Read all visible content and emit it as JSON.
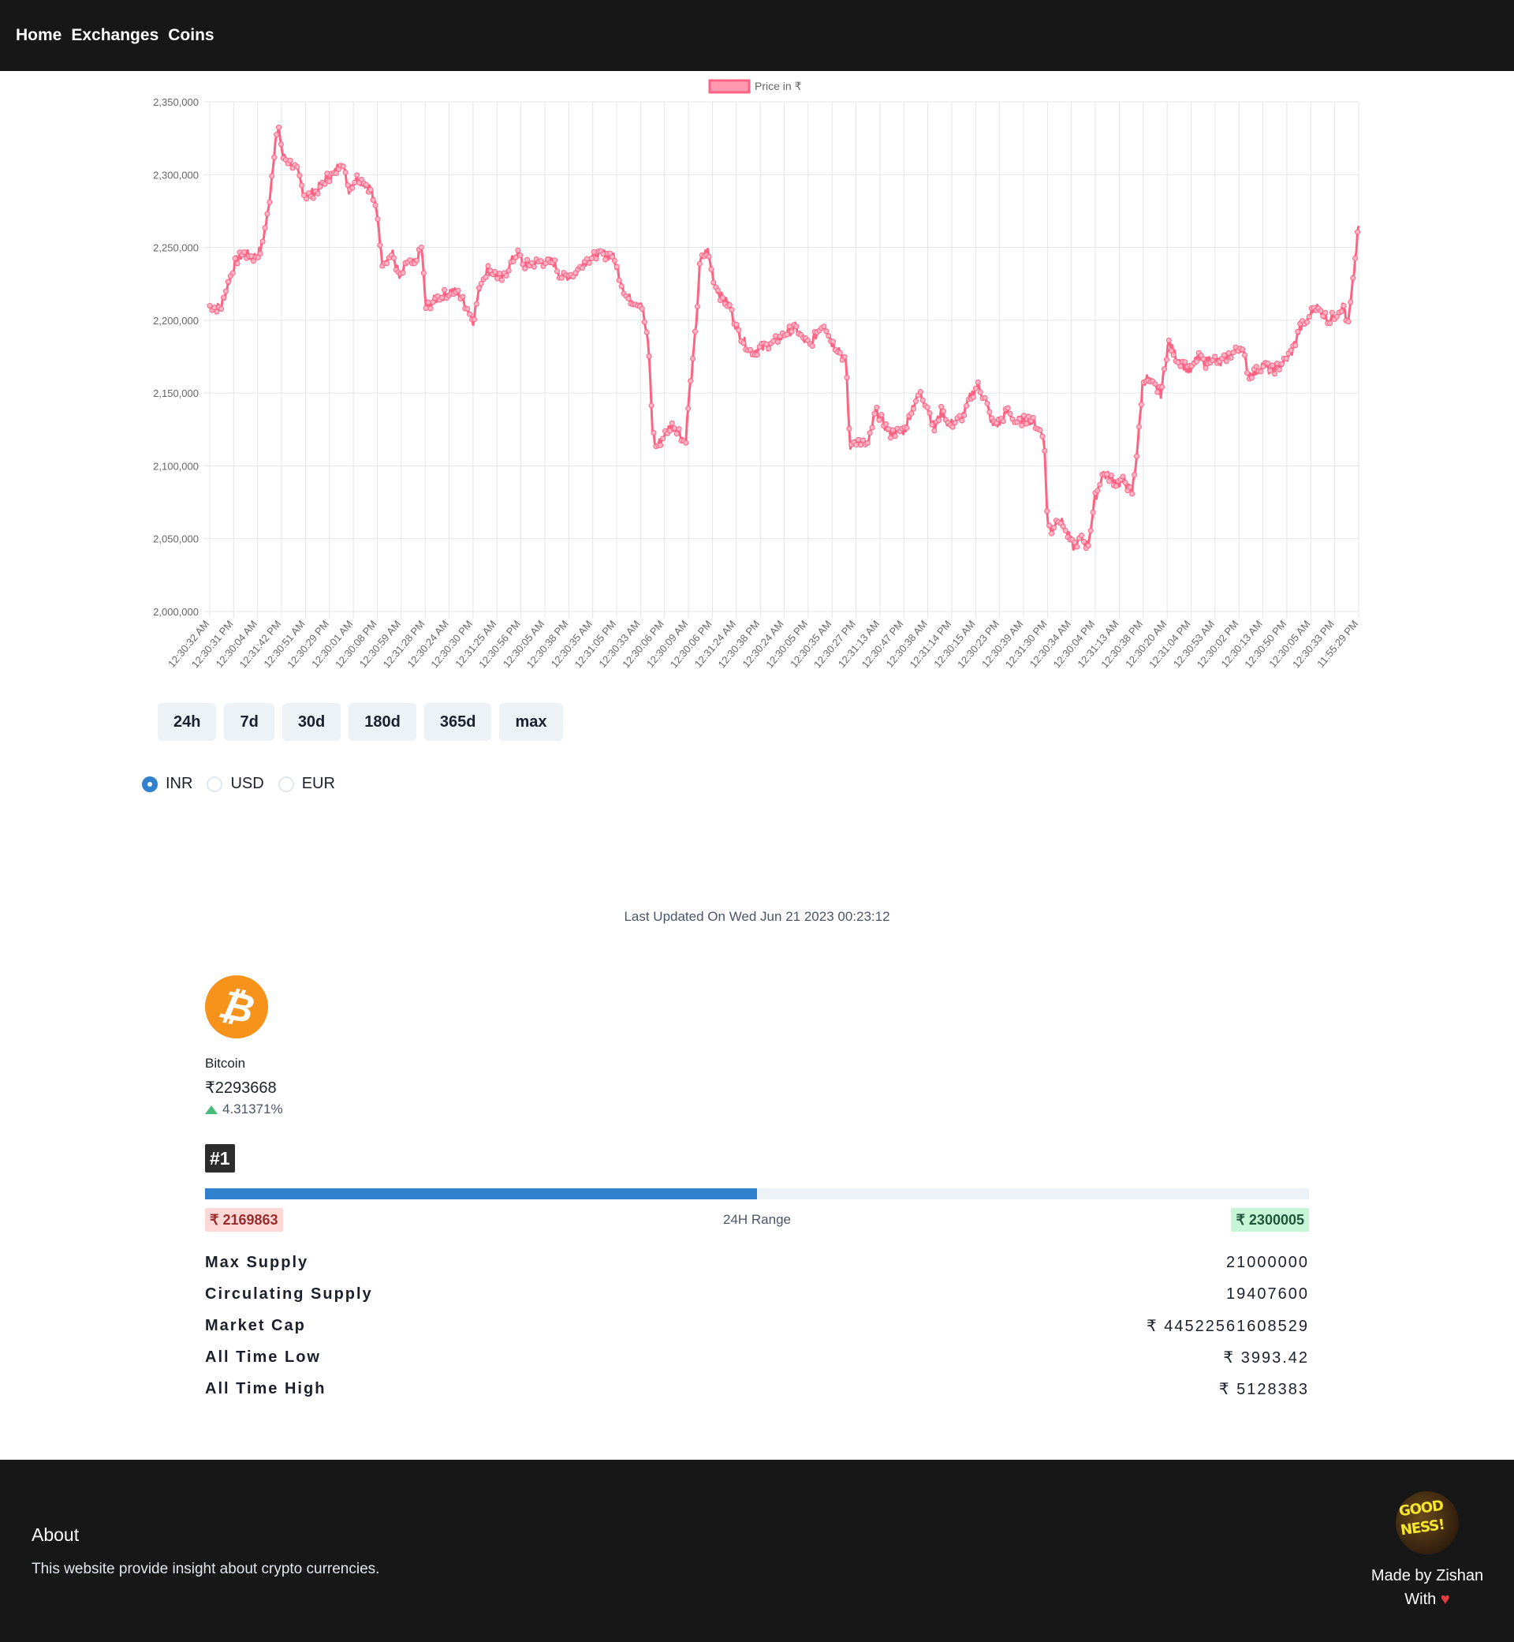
{
  "nav": {
    "items": [
      "Home",
      "Exchanges",
      "Coins"
    ]
  },
  "chart_data": {
    "type": "line",
    "legend": "Price in ₹",
    "legend_position": "top",
    "series_color": "#ff6384",
    "ylim": [
      2000000,
      2350000
    ],
    "yticks": [
      "2,000,000",
      "2,050,000",
      "2,100,000",
      "2,150,000",
      "2,200,000",
      "2,250,000",
      "2,300,000",
      "2,350,000"
    ],
    "xticks": [
      "12:30:32 AM",
      "12:30:31 PM",
      "12:30:04 AM",
      "12:31:42 PM",
      "12:30:51 AM",
      "12:30:29 PM",
      "12:30:01 AM",
      "12:30:08 PM",
      "12:30:59 AM",
      "12:31:28 PM",
      "12:30:24 AM",
      "12:30:30 PM",
      "12:31:25 AM",
      "12:30:56 PM",
      "12:30:05 AM",
      "12:30:38 PM",
      "12:30:35 AM",
      "12:31:05 PM",
      "12:30:33 AM",
      "12:30:06 PM",
      "12:30:09 AM",
      "12:30:06 PM",
      "12:31:24 AM",
      "12:30:38 PM",
      "12:30:24 AM",
      "12:30:05 PM",
      "12:30:35 AM",
      "12:30:27 PM",
      "12:31:13 AM",
      "12:30:47 PM",
      "12:30:38 AM",
      "12:31:14 PM",
      "12:30:15 AM",
      "12:30:23 PM",
      "12:30:39 AM",
      "12:31:30 PM",
      "12:30:34 AM",
      "12:30:04 PM",
      "12:31:13 AM",
      "12:30:38 PM",
      "12:30:20 AM",
      "12:31:04 PM",
      "12:30:53 AM",
      "12:30:02 PM",
      "12:30:13 AM",
      "12:30:50 PM",
      "12:30:05 AM",
      "12:30:33 PM",
      "11:55:29 PM"
    ],
    "keypoints": [
      [
        0,
        2210000
      ],
      [
        1.5,
        2208000
      ],
      [
        2.5,
        2225000
      ],
      [
        3.5,
        2240000
      ],
      [
        4.5,
        2246000
      ],
      [
        6,
        2243000
      ],
      [
        7,
        2248000
      ],
      [
        8,
        2275000
      ],
      [
        8.5,
        2300000
      ],
      [
        9,
        2325000
      ],
      [
        9.5,
        2330000
      ],
      [
        10,
        2312000
      ],
      [
        11,
        2308000
      ],
      [
        12,
        2302000
      ],
      [
        13,
        2285000
      ],
      [
        14.5,
        2288000
      ],
      [
        16,
        2298000
      ],
      [
        17,
        2300000
      ],
      [
        18,
        2310000
      ],
      [
        19,
        2290000
      ],
      [
        20,
        2298000
      ],
      [
        21,
        2295000
      ],
      [
        22,
        2290000
      ],
      [
        23,
        2270000
      ],
      [
        23.5,
        2240000
      ],
      [
        25,
        2245000
      ],
      [
        26,
        2228000
      ],
      [
        27,
        2240000
      ],
      [
        28,
        2238000
      ],
      [
        29,
        2250000
      ],
      [
        29.5,
        2208000
      ],
      [
        31,
        2215000
      ],
      [
        33,
        2220000
      ],
      [
        34,
        2218000
      ],
      [
        35,
        2210000
      ],
      [
        36,
        2200000
      ],
      [
        37,
        2225000
      ],
      [
        38,
        2235000
      ],
      [
        40,
        2228000
      ],
      [
        41,
        2238000
      ],
      [
        42,
        2246000
      ],
      [
        43,
        2238000
      ],
      [
        45,
        2240000
      ],
      [
        47,
        2240000
      ],
      [
        48,
        2230000
      ],
      [
        50,
        2232000
      ],
      [
        51,
        2240000
      ],
      [
        53,
        2245000
      ],
      [
        55,
        2245000
      ],
      [
        56,
        2230000
      ],
      [
        57,
        2215000
      ],
      [
        59,
        2212000
      ],
      [
        60,
        2180000
      ],
      [
        60.5,
        2125000
      ],
      [
        61,
        2112000
      ],
      [
        62,
        2120000
      ],
      [
        63,
        2128000
      ],
      [
        64,
        2125000
      ],
      [
        65,
        2115000
      ],
      [
        65.5,
        2148000
      ],
      [
        66,
        2170000
      ],
      [
        66.5,
        2200000
      ],
      [
        67,
        2240000
      ],
      [
        68,
        2248000
      ],
      [
        69,
        2225000
      ],
      [
        70,
        2215000
      ],
      [
        71,
        2210000
      ],
      [
        72,
        2195000
      ],
      [
        73,
        2185000
      ],
      [
        74,
        2178000
      ],
      [
        76,
        2182000
      ],
      [
        77,
        2185000
      ],
      [
        78,
        2188000
      ],
      [
        79,
        2192000
      ],
      [
        80,
        2195000
      ],
      [
        81,
        2188000
      ],
      [
        82,
        2182000
      ],
      [
        83,
        2192000
      ],
      [
        84,
        2198000
      ],
      [
        85,
        2185000
      ],
      [
        86,
        2180000
      ],
      [
        87,
        2170000
      ],
      [
        87.3,
        2130000
      ],
      [
        87.6,
        2110000
      ],
      [
        88,
        2118000
      ],
      [
        90,
        2115000
      ],
      [
        91,
        2138000
      ],
      [
        92,
        2130000
      ],
      [
        93,
        2122000
      ],
      [
        95,
        2125000
      ],
      [
        96,
        2140000
      ],
      [
        97,
        2150000
      ],
      [
        98,
        2142000
      ],
      [
        99,
        2125000
      ],
      [
        100,
        2138000
      ],
      [
        101,
        2128000
      ],
      [
        102,
        2130000
      ],
      [
        103,
        2135000
      ],
      [
        104,
        2148000
      ],
      [
        105,
        2155000
      ],
      [
        106,
        2145000
      ],
      [
        107,
        2128000
      ],
      [
        108,
        2130000
      ],
      [
        109,
        2138000
      ],
      [
        110,
        2130000
      ],
      [
        112,
        2132000
      ],
      [
        113,
        2128000
      ],
      [
        114,
        2120000
      ],
      [
        114.5,
        2060000
      ],
      [
        115,
        2055000
      ],
      [
        116,
        2065000
      ],
      [
        117,
        2055000
      ],
      [
        118,
        2045000
      ],
      [
        119,
        2050000
      ],
      [
        120,
        2045000
      ],
      [
        121,
        2078000
      ],
      [
        122,
        2095000
      ],
      [
        123,
        2092000
      ],
      [
        124,
        2088000
      ],
      [
        125,
        2090000
      ],
      [
        126,
        2080000
      ],
      [
        126.5,
        2100000
      ],
      [
        127,
        2125000
      ],
      [
        127.5,
        2158000
      ],
      [
        128,
        2160000
      ],
      [
        129,
        2155000
      ],
      [
        130,
        2150000
      ],
      [
        131,
        2185000
      ],
      [
        132,
        2175000
      ],
      [
        133,
        2170000
      ],
      [
        134,
        2165000
      ],
      [
        135,
        2175000
      ],
      [
        136,
        2170000
      ],
      [
        137,
        2175000
      ],
      [
        138,
        2170000
      ],
      [
        139,
        2175000
      ],
      [
        140,
        2178000
      ],
      [
        141,
        2182000
      ],
      [
        142,
        2162000
      ],
      [
        143,
        2165000
      ],
      [
        144,
        2170000
      ],
      [
        145,
        2165000
      ],
      [
        146,
        2168000
      ],
      [
        147,
        2172000
      ],
      [
        148,
        2180000
      ],
      [
        149,
        2195000
      ],
      [
        150,
        2200000
      ],
      [
        151,
        2210000
      ],
      [
        152,
        2205000
      ],
      [
        153,
        2200000
      ],
      [
        154,
        2205000
      ],
      [
        155,
        2210000
      ],
      [
        155.5,
        2195000
      ],
      [
        156,
        2215000
      ],
      [
        156.5,
        2240000
      ],
      [
        157,
        2265000
      ],
      [
        157.5,
        2300000
      ]
    ]
  },
  "time_buttons": [
    "24h",
    "7d",
    "30d",
    "180d",
    "365d",
    "max"
  ],
  "currencies": [
    {
      "label": "INR",
      "checked": true
    },
    {
      "label": "USD",
      "checked": false
    },
    {
      "label": "EUR",
      "checked": false
    }
  ],
  "info": {
    "last_updated": "Last Updated On Wed Jun 21 2023 00:23:12",
    "coin_symbol": "₿",
    "name": "Bitcoin",
    "price": "₹2293668",
    "change": "4.31371%",
    "rank": "#1",
    "range_low": "₹ 2169863",
    "range_label": "24H Range",
    "range_high": "₹ 2300005",
    "range_fill_fraction": 0.5
  },
  "stats": [
    {
      "label": "Max Supply",
      "value": "21000000"
    },
    {
      "label": "Circulating Supply",
      "value": "19407600"
    },
    {
      "label": "Market Cap",
      "value": "₹ 44522561608529"
    },
    {
      "label": "All Time Low",
      "value": "₹ 3993.42"
    },
    {
      "label": "All Time High",
      "value": "₹ 5128383"
    }
  ],
  "footer": {
    "about_title": "About",
    "about_text": "This website provide insight about crypto currencies.",
    "avatar_text_1": "GOOD",
    "avatar_text_2": "NESS!",
    "made_by": "Made by Zishan",
    "with_label": "With",
    "heart": "♥"
  }
}
